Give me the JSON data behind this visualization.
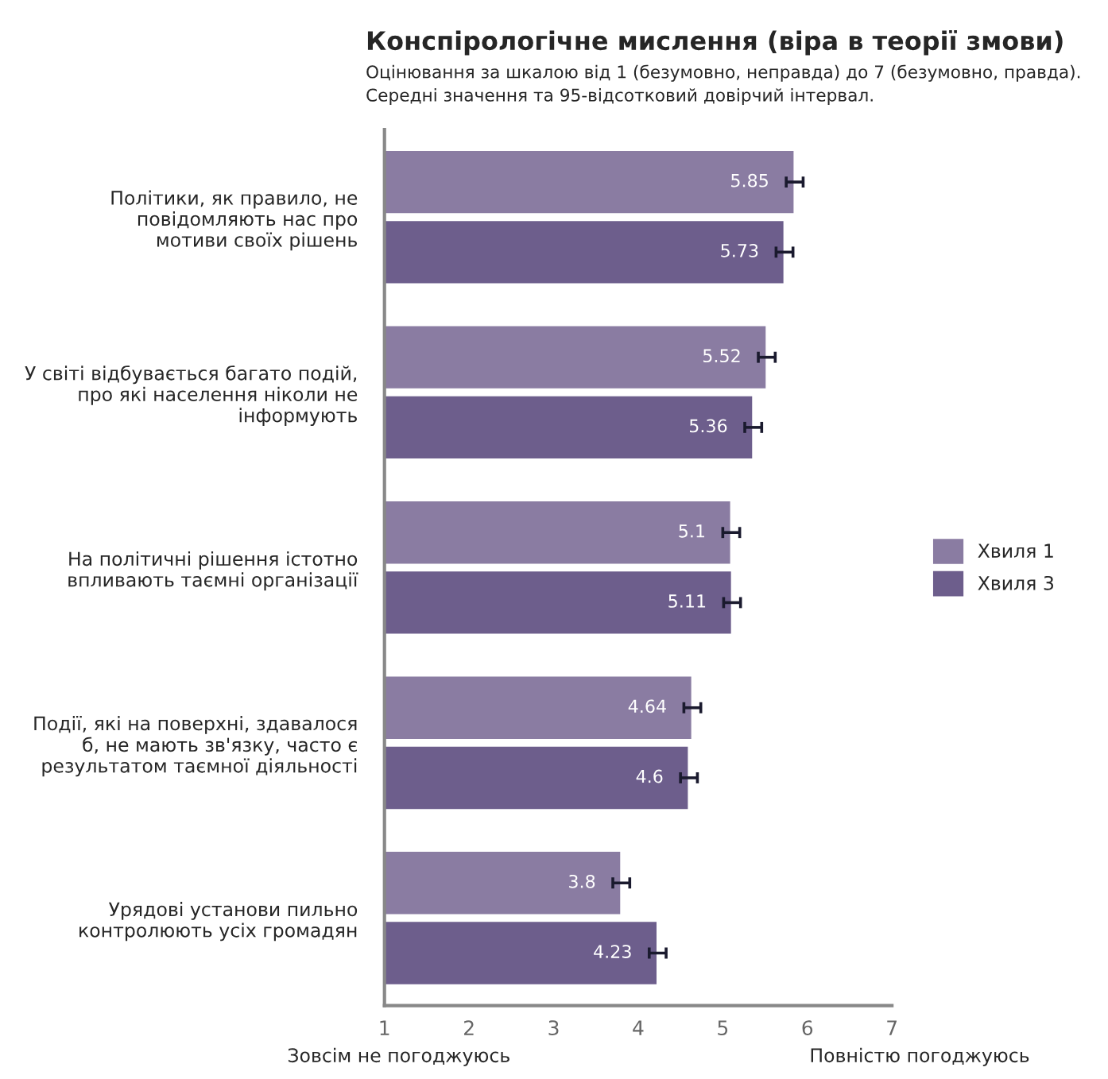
{
  "chart_data": {
    "type": "bar",
    "orientation": "horizontal",
    "title": "Конспірологічне мислення (віра в теорії змови)",
    "subtitle": "Оцінювання за шкалою від 1 (безумовно, неправда) до 7 (безумовно, правда).\nСередні значення та 95-відсотковий довірчий інтервал.",
    "categories": [
      "Політики, як правило, не\nповідомляють нас про\nмотиви своїх рішень",
      "У світі відбувається багато подій,\nпро які населення ніколи не\nінформують",
      "На політичні рішення істотно\nвпливають таємні організації",
      "Події, які на поверхні, здавалося\nб, не мають зв'язку, часто є\nрезультатом таємної діяльності",
      "Урядові установи пильно\nконтролюють усіх громадян"
    ],
    "series": [
      {
        "name": "Хвиля 1",
        "color": "#8a7ca2",
        "values": [
          5.85,
          5.52,
          5.1,
          4.64,
          3.8
        ],
        "errors": [
          0.1,
          0.1,
          0.1,
          0.1,
          0.1
        ]
      },
      {
        "name": "Хвиля 3",
        "color": "#6d5e8c",
        "values": [
          5.73,
          5.36,
          5.11,
          4.6,
          4.23
        ],
        "errors": [
          0.1,
          0.1,
          0.1,
          0.1,
          0.1
        ]
      }
    ],
    "xlim": [
      1,
      7
    ],
    "xticks": [
      1,
      2,
      3,
      4,
      5,
      6,
      7
    ],
    "data_labels": true,
    "legend": "right",
    "grid": false,
    "annotations": [
      "Зовсім не погоджуюсь",
      "Повністю погоджуюсь"
    ]
  }
}
